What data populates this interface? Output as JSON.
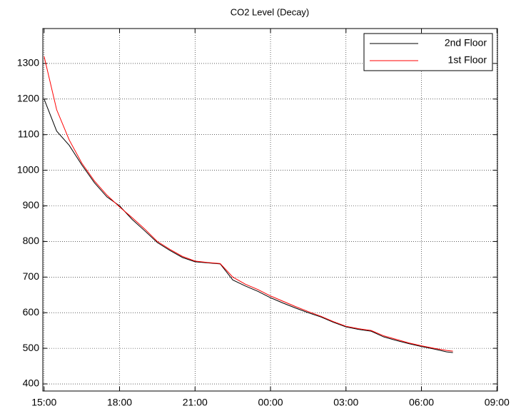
{
  "chart_data": {
    "type": "line",
    "title": "CO2 Level (Decay)",
    "x": [
      0,
      0.5,
      1,
      1.5,
      2,
      2.5,
      3,
      3.5,
      4,
      4.5,
      5,
      5.5,
      6,
      6.5,
      7,
      7.5,
      8,
      8.5,
      9,
      9.5,
      10,
      10.5,
      11,
      11.5,
      12,
      12.5,
      13,
      13.5,
      14,
      14.5,
      15,
      15.5,
      16,
      16.25
    ],
    "series": [
      {
        "name": "2nd Floor",
        "color": "#000000",
        "values": [
          1200,
          1110,
          1070,
          1015,
          965,
          925,
          900,
          862,
          830,
          797,
          775,
          755,
          743,
          740,
          737,
          692,
          675,
          660,
          642,
          627,
          613,
          600,
          588,
          573,
          560,
          553,
          548,
          532,
          522,
          513,
          505,
          498,
          490,
          488
        ]
      },
      {
        "name": "1st Floor",
        "color": "#ff0000",
        "values": [
          1320,
          1170,
          1085,
          1020,
          970,
          930,
          897,
          867,
          835,
          800,
          778,
          758,
          745,
          741,
          738,
          700,
          680,
          665,
          647,
          632,
          617,
          603,
          590,
          575,
          562,
          555,
          550,
          535,
          525,
          515,
          507,
          500,
          494,
          492
        ]
      }
    ],
    "xlim": [
      -0.05,
      18.02
    ],
    "xticks": [
      {
        "value": 0,
        "label": "15:00"
      },
      {
        "value": 3,
        "label": "18:00"
      },
      {
        "value": 6,
        "label": "21:00"
      },
      {
        "value": 9,
        "label": "00:00"
      },
      {
        "value": 12,
        "label": "03:00"
      },
      {
        "value": 15,
        "label": "06:00"
      },
      {
        "value": 18,
        "label": "09:00"
      }
    ],
    "ylim": [
      380,
      1398
    ],
    "yticks": [
      400,
      500,
      600,
      700,
      800,
      900,
      1000,
      1100,
      1200,
      1300
    ],
    "grid": true,
    "legend": "upper right"
  }
}
